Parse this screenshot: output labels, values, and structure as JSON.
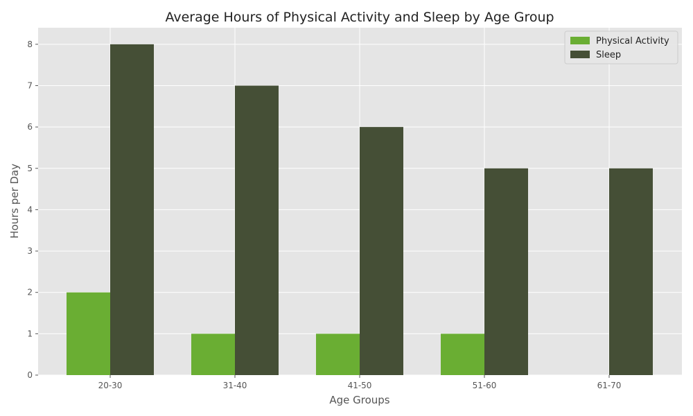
{
  "chart_data": {
    "type": "bar",
    "title": "Average Hours of Physical Activity and Sleep by Age Group",
    "xlabel": "Age Groups",
    "ylabel": "Hours per Day",
    "categories": [
      "20-30",
      "31-40",
      "41-50",
      "51-60",
      "61-70"
    ],
    "series": [
      {
        "name": "Physical Activity",
        "values": [
          2,
          1,
          1,
          1,
          0
        ],
        "color": "#6aae33"
      },
      {
        "name": "Sleep",
        "values": [
          8,
          7,
          6,
          5,
          5
        ],
        "color": "#454f36"
      }
    ],
    "ylim": [
      0,
      8.4
    ],
    "yticks": [
      0,
      1,
      2,
      3,
      4,
      5,
      6,
      7,
      8
    ],
    "grid": true,
    "legend_position": "top-right",
    "colors": {
      "plot_background": "#e5e5e5",
      "grid": "#ffffff"
    }
  }
}
